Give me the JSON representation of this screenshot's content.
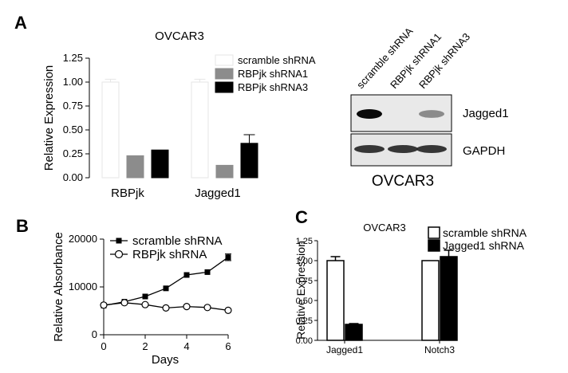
{
  "panels": {
    "a": {
      "letter": "A"
    },
    "b": {
      "letter": "B"
    },
    "c": {
      "letter": "C"
    }
  },
  "blot": {
    "lanes": [
      "scramble shRNA",
      "RBPjk shRNA1",
      "RBPjk shRNA3"
    ],
    "bands": [
      "Jagged1",
      "GAPDH"
    ],
    "jagged1_band_strength": [
      1.0,
      0.0,
      0.45
    ],
    "gapdh_band_strength": [
      1.0,
      1.0,
      1.0
    ],
    "caption": "OVCAR3"
  },
  "colors": {
    "white_bar": "#ffffff",
    "gray_bar": "#8c8c8c",
    "black_bar": "#000000",
    "outline": "#000000"
  },
  "chart_data": [
    {
      "type": "bar",
      "title": "OVCAR3",
      "xlabel": "",
      "ylabel": "Relative Expression",
      "ylim": [
        0,
        1.25
      ],
      "yticks": [
        "0.00",
        "0.25",
        "0.50",
        "0.75",
        "1.00",
        "1.25"
      ],
      "categories": [
        "RBPjk",
        "Jagged1"
      ],
      "series": [
        {
          "name": "scramble shRNA",
          "values": [
            1.0,
            1.0
          ],
          "errors": [
            0.03,
            0.03
          ],
          "color": "#ffffff",
          "outline": "#e6e6e6"
        },
        {
          "name": "RBPjk shRNA1",
          "values": [
            0.23,
            0.13
          ],
          "errors": [
            0,
            0
          ],
          "color": "#8c8c8c",
          "outline": "#8c8c8c"
        },
        {
          "name": "RBPjk shRNA3",
          "values": [
            0.29,
            0.36
          ],
          "errors": [
            0,
            0.09
          ],
          "color": "#000000",
          "outline": "#000000"
        }
      ],
      "legend_position": "top-right"
    },
    {
      "type": "line",
      "title": "",
      "xlabel": "Days",
      "ylabel": "Relative Absorbance",
      "xlim": [
        0,
        6
      ],
      "ylim": [
        0,
        20000
      ],
      "xticks": [
        "0",
        "2",
        "4",
        "6"
      ],
      "yticks": [
        "0",
        "10000",
        "20000"
      ],
      "x": [
        0,
        1,
        2,
        3,
        4,
        5,
        6
      ],
      "series": [
        {
          "name": "scramble shRNA",
          "marker": "filled-square",
          "values": [
            6100,
            6900,
            8000,
            9700,
            12500,
            13100,
            16200
          ],
          "last_error": 700
        },
        {
          "name": "RBPjk shRNA",
          "marker": "open-circle",
          "values": [
            6200,
            6700,
            6300,
            5600,
            5900,
            5700,
            5100
          ]
        }
      ],
      "legend_position": "top-left"
    },
    {
      "type": "bar",
      "title": "OVCAR3",
      "xlabel": "",
      "ylabel": "Relative Expression",
      "ylim": [
        0,
        1.25
      ],
      "yticks": [
        "0.00",
        "0.25",
        "0.50",
        "0.75",
        "1.00",
        "1.25"
      ],
      "categories": [
        "Jagged1",
        "Notch3"
      ],
      "series": [
        {
          "name": "scramble shRNA",
          "values": [
            1.0,
            1.0
          ],
          "errors": [
            0.05,
            0
          ],
          "color": "#ffffff",
          "outline": "#000000"
        },
        {
          "name": "Jagged1 shRNA",
          "values": [
            0.2,
            1.05
          ],
          "errors": [
            0.01,
            0.08
          ],
          "color": "#000000",
          "outline": "#000000"
        }
      ],
      "legend_position": "top-right"
    }
  ]
}
